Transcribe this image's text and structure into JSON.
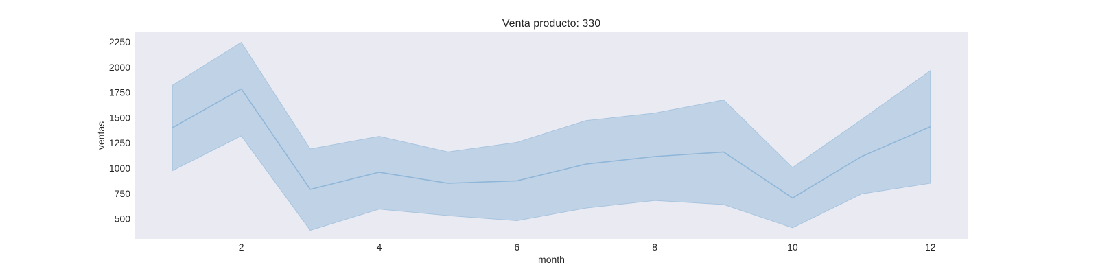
{
  "chart_data": {
    "type": "line",
    "title": "Venta producto: 330",
    "xlabel": "month",
    "ylabel": "ventas",
    "xlim": [
      0.45,
      12.55
    ],
    "ylim": [
      300,
      2345
    ],
    "xticks": [
      2,
      4,
      6,
      8,
      10,
      12
    ],
    "yticks": [
      500,
      750,
      1000,
      1250,
      1500,
      1750,
      2000,
      2250
    ],
    "grid": false,
    "legend": "none",
    "colors": {
      "plot_background": "#eaeaf2",
      "line": "#8fb6d8",
      "band": "#c0d3e6",
      "band_edge": "#a7c4df"
    },
    "series": [
      {
        "x": [
          1,
          2,
          3,
          4,
          5,
          6,
          7,
          8,
          9,
          10,
          11,
          12
        ],
        "values": [
          1400,
          1785,
          790,
          960,
          850,
          875,
          1040,
          1115,
          1160,
          705,
          1115,
          1410
        ],
        "lower": [
          975,
          1320,
          385,
          595,
          530,
          480,
          605,
          680,
          640,
          410,
          745,
          850
        ],
        "upper": [
          1820,
          2245,
          1190,
          1315,
          1160,
          1255,
          1470,
          1545,
          1675,
          1005,
          1480,
          1965
        ]
      }
    ]
  }
}
